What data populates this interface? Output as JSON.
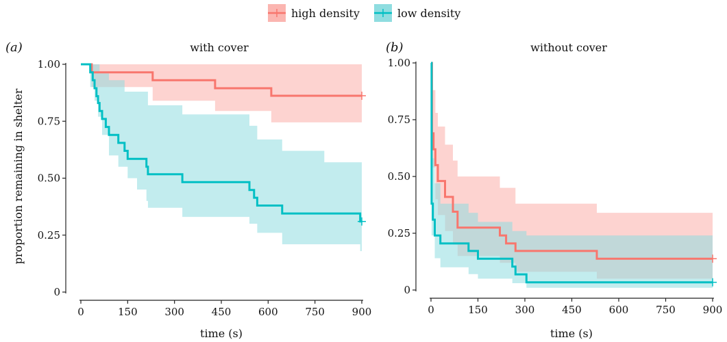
{
  "legend": {
    "items": [
      {
        "label": "high density",
        "color": "#F8766D",
        "fill": "#FBB5B0"
      },
      {
        "label": "low density",
        "color": "#00BFC4",
        "fill": "#8FDDE0"
      }
    ]
  },
  "ylabel": "proportion remaining in shelter",
  "chart_data": [
    {
      "type": "line",
      "panel_letter": "(a)",
      "title": "with cover",
      "xlabel": "time (s)",
      "ylabel": "proportion remaining in shelter",
      "xlim": [
        0,
        900
      ],
      "ylim": [
        0,
        1
      ],
      "xticks": [
        0,
        150,
        300,
        450,
        600,
        750,
        900
      ],
      "yticks": [
        0,
        0.25,
        0.5,
        0.75,
        1.0
      ],
      "yticklabels": [
        "0",
        "0.25",
        "0.50",
        "0.75",
        "1.00"
      ],
      "series": [
        {
          "name": "high density",
          "color": "#F8766D",
          "step": [
            [
              0,
              1.0
            ],
            [
              35,
              1.0
            ],
            [
              35,
              0.965
            ],
            [
              230,
              0.965
            ],
            [
              230,
              0.93
            ],
            [
              430,
              0.93
            ],
            [
              430,
              0.895
            ],
            [
              610,
              0.895
            ],
            [
              610,
              0.862
            ],
            [
              900,
              0.862
            ]
          ],
          "upper": [
            [
              0,
              1.0
            ],
            [
              900,
              1.0
            ]
          ],
          "lower": [
            [
              0,
              1.0
            ],
            [
              35,
              1.0
            ],
            [
              35,
              0.9
            ],
            [
              230,
              0.9
            ],
            [
              230,
              0.84
            ],
            [
              430,
              0.84
            ],
            [
              430,
              0.795
            ],
            [
              610,
              0.795
            ],
            [
              610,
              0.745
            ],
            [
              900,
              0.745
            ]
          ],
          "censor": [
            900,
            0.862
          ]
        },
        {
          "name": "low density",
          "color": "#00BFC4",
          "step": [
            [
              0,
              1.0
            ],
            [
              30,
              1.0
            ],
            [
              30,
              0.965
            ],
            [
              38,
              0.965
            ],
            [
              38,
              0.93
            ],
            [
              44,
              0.93
            ],
            [
              44,
              0.895
            ],
            [
              50,
              0.895
            ],
            [
              50,
              0.86
            ],
            [
              55,
              0.86
            ],
            [
              55,
              0.83
            ],
            [
              60,
              0.83
            ],
            [
              60,
              0.795
            ],
            [
              68,
              0.795
            ],
            [
              68,
              0.76
            ],
            [
              80,
              0.76
            ],
            [
              80,
              0.725
            ],
            [
              90,
              0.725
            ],
            [
              90,
              0.69
            ],
            [
              120,
              0.69
            ],
            [
              120,
              0.655
            ],
            [
              140,
              0.655
            ],
            [
              140,
              0.62
            ],
            [
              150,
              0.62
            ],
            [
              150,
              0.585
            ],
            [
              210,
              0.585
            ],
            [
              210,
              0.55
            ],
            [
              215,
              0.55
            ],
            [
              215,
              0.517
            ],
            [
              325,
              0.517
            ],
            [
              325,
              0.483
            ],
            [
              540,
              0.483
            ],
            [
              540,
              0.448
            ],
            [
              555,
              0.448
            ],
            [
              555,
              0.414
            ],
            [
              565,
              0.414
            ],
            [
              565,
              0.38
            ],
            [
              645,
              0.38
            ],
            [
              645,
              0.345
            ],
            [
              895,
              0.345
            ],
            [
              895,
              0.31
            ],
            [
              900,
              0.31
            ]
          ],
          "upper": [
            [
              0,
              1.0
            ],
            [
              30,
              1.0
            ],
            [
              30,
              1.0
            ],
            [
              60,
              1.0
            ],
            [
              60,
              0.96
            ],
            [
              90,
              0.96
            ],
            [
              90,
              0.93
            ],
            [
              140,
              0.93
            ],
            [
              140,
              0.88
            ],
            [
              215,
              0.88
            ],
            [
              215,
              0.82
            ],
            [
              325,
              0.82
            ],
            [
              325,
              0.78
            ],
            [
              540,
              0.78
            ],
            [
              540,
              0.73
            ],
            [
              565,
              0.73
            ],
            [
              565,
              0.67
            ],
            [
              645,
              0.67
            ],
            [
              645,
              0.62
            ],
            [
              780,
              0.62
            ],
            [
              780,
              0.57
            ],
            [
              900,
              0.57
            ]
          ],
          "lower": [
            [
              0,
              1.0
            ],
            [
              30,
              1.0
            ],
            [
              30,
              0.9
            ],
            [
              44,
              0.9
            ],
            [
              44,
              0.84
            ],
            [
              55,
              0.84
            ],
            [
              55,
              0.77
            ],
            [
              68,
              0.77
            ],
            [
              68,
              0.69
            ],
            [
              90,
              0.69
            ],
            [
              90,
              0.6
            ],
            [
              120,
              0.6
            ],
            [
              120,
              0.55
            ],
            [
              150,
              0.55
            ],
            [
              150,
              0.5
            ],
            [
              180,
              0.5
            ],
            [
              180,
              0.45
            ],
            [
              210,
              0.45
            ],
            [
              210,
              0.4
            ],
            [
              215,
              0.4
            ],
            [
              215,
              0.37
            ],
            [
              325,
              0.37
            ],
            [
              325,
              0.33
            ],
            [
              540,
              0.33
            ],
            [
              540,
              0.3
            ],
            [
              565,
              0.3
            ],
            [
              565,
              0.26
            ],
            [
              645,
              0.26
            ],
            [
              645,
              0.21
            ],
            [
              895,
              0.21
            ],
            [
              895,
              0.18
            ],
            [
              900,
              0.18
            ]
          ],
          "censor": [
            900,
            0.31
          ]
        }
      ]
    },
    {
      "type": "line",
      "panel_letter": "(b)",
      "title": "without cover",
      "xlabel": "time (s)",
      "ylabel": "",
      "xlim": [
        0,
        900
      ],
      "ylim": [
        0,
        1
      ],
      "xticks": [
        0,
        150,
        300,
        450,
        600,
        750,
        900
      ],
      "yticks": [
        0,
        0.25,
        0.5,
        0.75,
        1.0
      ],
      "yticklabels": [
        "0",
        "0.25",
        "0.50",
        "0.75",
        "1.00"
      ],
      "series": [
        {
          "name": "high density",
          "color": "#F8766D",
          "step": [
            [
              0,
              1.0
            ],
            [
              3,
              1.0
            ],
            [
              3,
              0.69
            ],
            [
              8,
              0.69
            ],
            [
              8,
              0.62
            ],
            [
              14,
              0.62
            ],
            [
              14,
              0.55
            ],
            [
              22,
              0.55
            ],
            [
              22,
              0.48
            ],
            [
              45,
              0.48
            ],
            [
              45,
              0.41
            ],
            [
              70,
              0.41
            ],
            [
              70,
              0.345
            ],
            [
              85,
              0.345
            ],
            [
              85,
              0.275
            ],
            [
              220,
              0.275
            ],
            [
              220,
              0.24
            ],
            [
              240,
              0.24
            ],
            [
              240,
              0.205
            ],
            [
              270,
              0.205
            ],
            [
              270,
              0.172
            ],
            [
              530,
              0.172
            ],
            [
              530,
              0.138
            ],
            [
              900,
              0.138
            ]
          ],
          "upper": [
            [
              0,
              1.0
            ],
            [
              3,
              1.0
            ],
            [
              3,
              0.88
            ],
            [
              14,
              0.88
            ],
            [
              14,
              0.78
            ],
            [
              22,
              0.78
            ],
            [
              22,
              0.72
            ],
            [
              45,
              0.72
            ],
            [
              45,
              0.64
            ],
            [
              70,
              0.64
            ],
            [
              70,
              0.57
            ],
            [
              85,
              0.57
            ],
            [
              85,
              0.5
            ],
            [
              220,
              0.5
            ],
            [
              220,
              0.45
            ],
            [
              270,
              0.45
            ],
            [
              270,
              0.38
            ],
            [
              530,
              0.38
            ],
            [
              530,
              0.34
            ],
            [
              900,
              0.34
            ]
          ],
          "lower": [
            [
              0,
              1.0
            ],
            [
              3,
              1.0
            ],
            [
              3,
              0.54
            ],
            [
              14,
              0.54
            ],
            [
              14,
              0.4
            ],
            [
              22,
              0.4
            ],
            [
              22,
              0.33
            ],
            [
              45,
              0.33
            ],
            [
              45,
              0.26
            ],
            [
              70,
              0.26
            ],
            [
              70,
              0.2
            ],
            [
              85,
              0.2
            ],
            [
              85,
              0.15
            ],
            [
              220,
              0.15
            ],
            [
              220,
              0.12
            ],
            [
              270,
              0.12
            ],
            [
              270,
              0.08
            ],
            [
              530,
              0.08
            ],
            [
              530,
              0.05
            ],
            [
              900,
              0.05
            ]
          ],
          "censor": [
            900,
            0.138
          ]
        },
        {
          "name": "low density",
          "color": "#00BFC4",
          "step": [
            [
              0,
              1.0
            ],
            [
              2,
              1.0
            ],
            [
              2,
              0.38
            ],
            [
              6,
              0.38
            ],
            [
              6,
              0.31
            ],
            [
              12,
              0.31
            ],
            [
              12,
              0.24
            ],
            [
              30,
              0.24
            ],
            [
              30,
              0.205
            ],
            [
              120,
              0.205
            ],
            [
              120,
              0.172
            ],
            [
              150,
              0.172
            ],
            [
              150,
              0.138
            ],
            [
              260,
              0.138
            ],
            [
              260,
              0.103
            ],
            [
              270,
              0.103
            ],
            [
              270,
              0.069
            ],
            [
              305,
              0.069
            ],
            [
              305,
              0.034
            ],
            [
              900,
              0.034
            ]
          ],
          "upper": [
            [
              0,
              1.0
            ],
            [
              2,
              1.0
            ],
            [
              2,
              0.58
            ],
            [
              12,
              0.58
            ],
            [
              12,
              0.47
            ],
            [
              30,
              0.47
            ],
            [
              30,
              0.38
            ],
            [
              120,
              0.38
            ],
            [
              120,
              0.34
            ],
            [
              150,
              0.34
            ],
            [
              150,
              0.3
            ],
            [
              260,
              0.3
            ],
            [
              260,
              0.26
            ],
            [
              305,
              0.26
            ],
            [
              305,
              0.24
            ],
            [
              900,
              0.24
            ]
          ],
          "lower": [
            [
              0,
              1.0
            ],
            [
              2,
              1.0
            ],
            [
              2,
              0.24
            ],
            [
              12,
              0.24
            ],
            [
              12,
              0.14
            ],
            [
              30,
              0.14
            ],
            [
              30,
              0.1
            ],
            [
              120,
              0.1
            ],
            [
              120,
              0.07
            ],
            [
              150,
              0.07
            ],
            [
              150,
              0.05
            ],
            [
              260,
              0.05
            ],
            [
              260,
              0.03
            ],
            [
              305,
              0.03
            ],
            [
              305,
              0.01
            ],
            [
              900,
              0.01
            ]
          ],
          "censor": [
            900,
            0.034
          ]
        }
      ]
    }
  ]
}
